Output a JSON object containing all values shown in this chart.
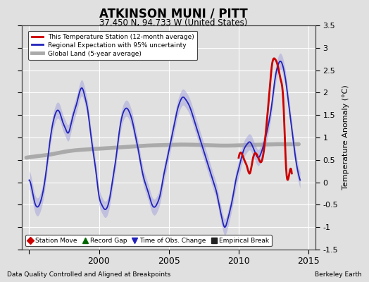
{
  "title": "ATKINSON MUNI / PITT",
  "subtitle": "37.450 N, 94.733 W (United States)",
  "ylabel": "Temperature Anomaly (°C)",
  "footer_left": "Data Quality Controlled and Aligned at Breakpoints",
  "footer_right": "Berkeley Earth",
  "xlim": [
    1994.5,
    2015.5
  ],
  "ylim": [
    -1.5,
    3.5
  ],
  "yticks": [
    -1.5,
    -1.0,
    -0.5,
    0.0,
    0.5,
    1.0,
    1.5,
    2.0,
    2.5,
    3.0,
    3.5
  ],
  "xticks": [
    1995,
    2000,
    2005,
    2010,
    2015
  ],
  "xticklabels": [
    "",
    "2000",
    "2005",
    "2010",
    "2015"
  ],
  "background_color": "#e0e0e0",
  "plot_bg_color": "#e0e0e0",
  "grid_color": "#ffffff",
  "blue_line_color": "#2222bb",
  "blue_fill_color": "#9999dd",
  "red_line_color": "#cc0000",
  "gray_line_color": "#aaaaaa",
  "legend_labels": [
    "This Temperature Station (12-month average)",
    "Regional Expectation with 95% uncertainty",
    "Global Land (5-year average)"
  ],
  "marker_legend": [
    {
      "label": "Station Move",
      "marker": "D",
      "color": "#cc0000"
    },
    {
      "label": "Record Gap",
      "marker": "^",
      "color": "#006600"
    },
    {
      "label": "Time of Obs. Change",
      "marker": "v",
      "color": "#2222bb"
    },
    {
      "label": "Empirical Break",
      "marker": "s",
      "color": "#222222"
    }
  ],
  "blue_t": [
    1995.0,
    1995.2,
    1995.4,
    1995.6,
    1995.8,
    1996.0,
    1996.2,
    1996.4,
    1996.6,
    1996.8,
    1997.0,
    1997.2,
    1997.4,
    1997.6,
    1997.8,
    1998.0,
    1998.2,
    1998.4,
    1998.6,
    1998.8,
    1999.0,
    1999.2,
    1999.4,
    1999.6,
    1999.8,
    2000.0,
    2000.2,
    2000.4,
    2000.6,
    2000.8,
    2001.0,
    2001.2,
    2001.4,
    2001.6,
    2001.8,
    2002.0,
    2002.2,
    2002.4,
    2002.6,
    2002.8,
    2003.0,
    2003.2,
    2003.4,
    2003.6,
    2003.8,
    2004.0,
    2004.2,
    2004.4,
    2004.6,
    2004.8,
    2005.0,
    2005.2,
    2005.4,
    2005.6,
    2005.8,
    2006.0,
    2006.2,
    2006.4,
    2006.6,
    2006.8,
    2007.0,
    2007.2,
    2007.4,
    2007.6,
    2007.8,
    2008.0,
    2008.2,
    2008.4,
    2008.6,
    2008.8,
    2009.0,
    2009.2,
    2009.4,
    2009.6,
    2009.8,
    2010.0,
    2010.2,
    2010.4,
    2010.6,
    2010.8,
    2011.0,
    2011.2,
    2011.4,
    2011.6,
    2011.8,
    2012.0,
    2012.2,
    2012.4,
    2012.6,
    2012.8,
    2013.0,
    2013.2,
    2013.4,
    2013.6,
    2013.8,
    2014.0,
    2014.2,
    2014.4
  ],
  "blue_y": [
    0.05,
    -0.15,
    -0.45,
    -0.55,
    -0.45,
    -0.2,
    0.2,
    0.7,
    1.15,
    1.45,
    1.6,
    1.55,
    1.35,
    1.2,
    1.1,
    1.3,
    1.55,
    1.75,
    2.0,
    2.1,
    1.9,
    1.6,
    1.1,
    0.65,
    0.2,
    -0.3,
    -0.5,
    -0.6,
    -0.55,
    -0.3,
    0.1,
    0.5,
    1.0,
    1.4,
    1.6,
    1.65,
    1.55,
    1.35,
    1.05,
    0.75,
    0.4,
    0.1,
    -0.1,
    -0.3,
    -0.5,
    -0.55,
    -0.45,
    -0.25,
    0.1,
    0.4,
    0.7,
    1.0,
    1.3,
    1.6,
    1.8,
    1.9,
    1.85,
    1.75,
    1.6,
    1.4,
    1.2,
    1.0,
    0.8,
    0.6,
    0.4,
    0.2,
    0.0,
    -0.2,
    -0.5,
    -0.8,
    -1.0,
    -0.85,
    -0.6,
    -0.3,
    0.05,
    0.3,
    0.55,
    0.75,
    0.85,
    0.9,
    0.8,
    0.65,
    0.55,
    0.65,
    0.85,
    1.1,
    1.4,
    1.8,
    2.3,
    2.6,
    2.7,
    2.55,
    2.2,
    1.7,
    1.2,
    0.7,
    0.3,
    0.05
  ],
  "blue_unc": [
    0.2,
    0.2,
    0.2,
    0.2,
    0.2,
    0.2,
    0.18,
    0.18,
    0.18,
    0.18,
    0.18,
    0.18,
    0.18,
    0.18,
    0.18,
    0.18,
    0.18,
    0.18,
    0.18,
    0.18,
    0.18,
    0.18,
    0.18,
    0.18,
    0.18,
    0.18,
    0.18,
    0.18,
    0.18,
    0.18,
    0.18,
    0.18,
    0.18,
    0.18,
    0.18,
    0.18,
    0.18,
    0.18,
    0.18,
    0.18,
    0.18,
    0.18,
    0.18,
    0.18,
    0.18,
    0.18,
    0.18,
    0.18,
    0.18,
    0.18,
    0.18,
    0.18,
    0.18,
    0.18,
    0.18,
    0.18,
    0.18,
    0.18,
    0.18,
    0.18,
    0.18,
    0.18,
    0.18,
    0.18,
    0.18,
    0.18,
    0.18,
    0.18,
    0.18,
    0.18,
    0.18,
    0.18,
    0.18,
    0.18,
    0.18,
    0.18,
    0.18,
    0.18,
    0.18,
    0.18,
    0.18,
    0.18,
    0.18,
    0.18,
    0.18,
    0.18,
    0.18,
    0.18,
    0.18,
    0.18,
    0.18,
    0.18,
    0.18,
    0.18,
    0.18,
    0.18,
    0.18,
    0.18
  ],
  "gray_t": [
    1994.8,
    1995.5,
    1996.5,
    1997.5,
    1998.5,
    1999.5,
    2000.5,
    2001.5,
    2002.5,
    2003.5,
    2004.5,
    2005.5,
    2006.5,
    2007.5,
    2008.5,
    2009.5,
    2010.5,
    2011.5,
    2012.5,
    2013.5,
    2014.3
  ],
  "gray_y": [
    0.55,
    0.58,
    0.62,
    0.68,
    0.72,
    0.74,
    0.76,
    0.78,
    0.8,
    0.82,
    0.83,
    0.84,
    0.84,
    0.83,
    0.82,
    0.82,
    0.83,
    0.84,
    0.85,
    0.85,
    0.85
  ],
  "red_t": [
    2010.0,
    2010.2,
    2010.4,
    2010.6,
    2010.8,
    2011.0,
    2011.2,
    2011.4,
    2011.6,
    2011.8,
    2012.0,
    2012.2,
    2012.4,
    2012.6,
    2012.8,
    2013.0,
    2013.2,
    2013.4,
    2013.6,
    2013.8
  ],
  "red_y": [
    0.55,
    0.65,
    0.5,
    0.35,
    0.2,
    0.5,
    0.65,
    0.55,
    0.45,
    0.7,
    1.3,
    2.0,
    2.65,
    2.75,
    2.6,
    2.3,
    1.8,
    0.3,
    0.15,
    0.2
  ]
}
